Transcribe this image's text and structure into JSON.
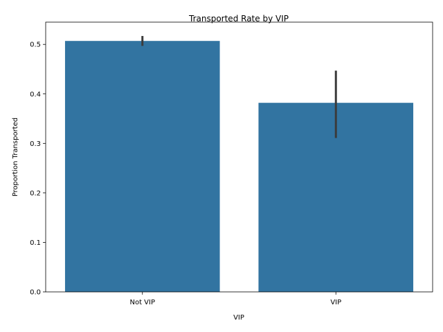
{
  "chart_data": {
    "type": "bar",
    "title": "Transported Rate by VIP",
    "xlabel": "VIP",
    "ylabel": "Proportion Transported",
    "categories": [
      "Not VIP",
      "VIP"
    ],
    "values": [
      0.507,
      0.382
    ],
    "error_low": [
      0.497,
      0.311
    ],
    "error_high": [
      0.517,
      0.447
    ],
    "ylim": [
      0,
      0.545
    ],
    "yticks": [
      0.0,
      0.1,
      0.2,
      0.3,
      0.4,
      0.5
    ],
    "ytick_labels": [
      "0.0",
      "0.1",
      "0.2",
      "0.3",
      "0.4",
      "0.5"
    ],
    "bar_color": "#3274a1",
    "error_color": "#3b3b3b",
    "grid": false
  }
}
